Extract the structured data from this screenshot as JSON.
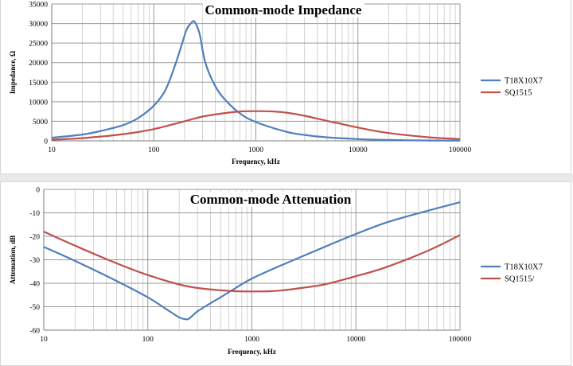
{
  "chart_data": [
    {
      "type": "line",
      "title": "Common-mode Impedance",
      "xlabel": "Frequency, kHz",
      "ylabel": "Impedance, Ω",
      "x_scale": "log",
      "xlim": [
        10,
        100000
      ],
      "ylim": [
        0,
        35000
      ],
      "x_ticks": [
        "10",
        "100",
        "1000",
        "10000",
        "100000"
      ],
      "y_ticks": [
        "0",
        "5000",
        "10000",
        "15000",
        "20000",
        "25000",
        "30000",
        "35000"
      ],
      "grid": true,
      "legend_position": "right",
      "series": [
        {
          "name": "T18X10X7",
          "color": "#4f7fbd",
          "x": [
            10,
            20,
            30,
            50,
            70,
            100,
            130,
            160,
            190,
            210,
            230,
            250,
            280,
            320,
            400,
            500,
            700,
            1000,
            2000,
            3000,
            5000,
            10000,
            20000,
            50000,
            100000
          ],
          "y": [
            800,
            1600,
            2500,
            4000,
            5800,
            9000,
            13000,
            19000,
            25000,
            28500,
            30000,
            30500,
            27500,
            20000,
            14000,
            10500,
            7000,
            4800,
            2300,
            1500,
            900,
            450,
            220,
            90,
            40
          ]
        },
        {
          "name": "SQ1515",
          "color": "#c0504d",
          "x": [
            10,
            20,
            50,
            100,
            200,
            300,
            500,
            700,
            1000,
            1500,
            2000,
            3000,
            5000,
            7000,
            10000,
            20000,
            50000,
            100000
          ],
          "y": [
            300,
            700,
            1700,
            3000,
            5000,
            6200,
            7100,
            7500,
            7600,
            7500,
            7200,
            6400,
            5100,
            4300,
            3400,
            2000,
            900,
            450
          ]
        }
      ]
    },
    {
      "type": "line",
      "title": "Common-mode Attenuation",
      "xlabel": "Frequency, kHz",
      "ylabel": "Attenuation, dB",
      "x_scale": "log",
      "xlim": [
        10,
        100000
      ],
      "ylim": [
        -60,
        0
      ],
      "x_ticks": [
        "10",
        "100",
        "1000",
        "10000",
        "100000"
      ],
      "y_ticks": [
        "0",
        "-10",
        "-20",
        "-30",
        "-40",
        "-50",
        "-60"
      ],
      "grid": true,
      "legend_position": "right",
      "series": [
        {
          "name": "T18X10X7",
          "color": "#4f7fbd",
          "x": [
            10,
            20,
            50,
            100,
            150,
            200,
            230,
            250,
            300,
            400,
            500,
            700,
            1000,
            2000,
            5000,
            10000,
            20000,
            50000,
            100000
          ],
          "y": [
            -24.5,
            -30.5,
            -39,
            -46,
            -51,
            -54.5,
            -55.3,
            -55,
            -52,
            -48.5,
            -46,
            -42,
            -38,
            -32,
            -24.5,
            -19,
            -14,
            -9,
            -5.5
          ]
        },
        {
          "name": "SQ1515/",
          "color": "#c0504d",
          "x": [
            10,
            20,
            50,
            100,
            200,
            300,
            500,
            700,
            1000,
            1500,
            2000,
            3000,
            5000,
            10000,
            20000,
            50000,
            100000
          ],
          "y": [
            -18,
            -24,
            -31.5,
            -36.5,
            -40.5,
            -42,
            -43,
            -43.4,
            -43.5,
            -43.4,
            -43,
            -42,
            -40.5,
            -37,
            -33,
            -26,
            -19.5
          ]
        }
      ]
    }
  ]
}
